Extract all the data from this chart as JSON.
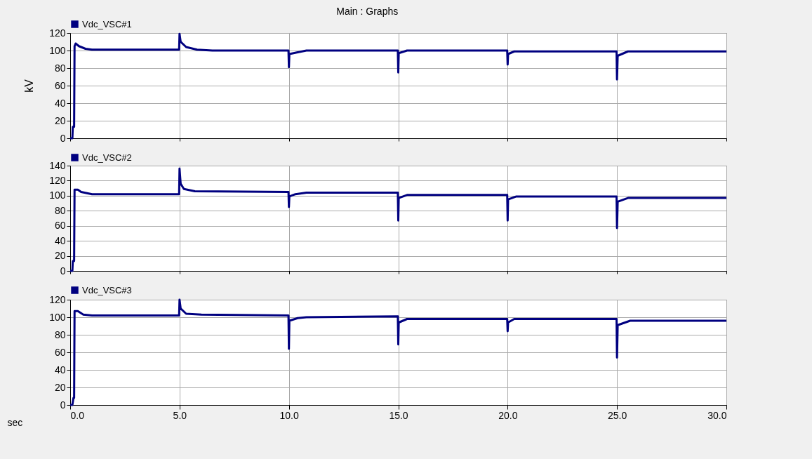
{
  "chart_data": [
    {
      "type": "line",
      "title": "Main : Graphs",
      "ylabel": "kV",
      "legend": "top left",
      "grid": true,
      "tick_labels": "y",
      "xlim": [
        0,
        30
      ],
      "xticks": [
        0,
        5,
        10,
        15,
        20,
        25,
        30
      ],
      "ylim": [
        0,
        120
      ],
      "yticks": [
        0,
        20,
        40,
        60,
        80,
        100,
        120
      ],
      "series": [
        {
          "name": "Vdc_VSC#1",
          "color": "#000080",
          "x": [
            0,
            0.1,
            0.12,
            0.18,
            0.2,
            0.25,
            0.4,
            0.7,
            1.0,
            4.98,
            5.0,
            5.05,
            5.3,
            5.8,
            6.5,
            9.98,
            10.0,
            10.02,
            10.4,
            10.8,
            14.98,
            15.0,
            15.02,
            15.4,
            19.98,
            20.0,
            20.02,
            20.3,
            24.98,
            25.0,
            25.03,
            25.5,
            30
          ],
          "values": [
            0,
            0,
            13,
            13,
            105,
            108,
            105,
            102,
            101,
            101,
            119,
            110,
            104,
            101,
            100,
            100,
            81,
            96,
            98,
            100,
            100,
            75,
            97,
            100,
            100,
            84,
            96,
            99,
            99,
            67,
            94,
            99,
            99
          ]
        }
      ]
    },
    {
      "type": "line",
      "legend": "top left",
      "grid": true,
      "tick_labels": "y",
      "xlim": [
        0,
        30
      ],
      "xticks": [
        0,
        5,
        10,
        15,
        20,
        25,
        30
      ],
      "ylim": [
        0,
        140
      ],
      "yticks": [
        0,
        20,
        40,
        60,
        80,
        100,
        120,
        140
      ],
      "series": [
        {
          "name": "Vdc_VSC#2",
          "color": "#000080",
          "x": [
            0,
            0.1,
            0.12,
            0.18,
            0.2,
            0.35,
            0.5,
            1.0,
            4.98,
            5.0,
            5.05,
            5.2,
            5.7,
            9.98,
            10.0,
            10.02,
            10.3,
            10.8,
            14.98,
            15.0,
            15.02,
            15.4,
            19.98,
            20.0,
            20.02,
            20.4,
            24.98,
            25.0,
            25.03,
            25.5,
            30
          ],
          "values": [
            0,
            0,
            13,
            13,
            108,
            108,
            105,
            102,
            102,
            136,
            116,
            109,
            106,
            105,
            85,
            99,
            102,
            104,
            104,
            67,
            97,
            101,
            101,
            67,
            95,
            99,
            99,
            57,
            92,
            97,
            97
          ]
        }
      ]
    },
    {
      "type": "line",
      "xlabel": "sec",
      "legend": "top left",
      "grid": true,
      "xlim": [
        0,
        30
      ],
      "xticks": [
        {
          "value": 0,
          "label": "0.0"
        },
        {
          "value": 5,
          "label": "5.0"
        },
        {
          "value": 10,
          "label": "10.0"
        },
        {
          "value": 15,
          "label": "15.0"
        },
        {
          "value": 20,
          "label": "20.0"
        },
        {
          "value": 25,
          "label": "25.0"
        },
        {
          "value": 30,
          "label": "30.0"
        }
      ],
      "ylim": [
        0,
        120
      ],
      "yticks": [
        0,
        20,
        40,
        60,
        80,
        100,
        120
      ],
      "series": [
        {
          "name": "Vdc_VSC#3",
          "color": "#000080",
          "x": [
            0,
            0.1,
            0.15,
            0.18,
            0.2,
            0.35,
            0.6,
            1.0,
            4.98,
            5.0,
            5.05,
            5.3,
            6.0,
            9.98,
            10.0,
            10.02,
            10.4,
            10.8,
            14.98,
            15.0,
            15.02,
            15.4,
            19.98,
            20.0,
            20.02,
            20.3,
            24.98,
            25.0,
            25.03,
            25.6,
            30
          ],
          "values": [
            0,
            0,
            8,
            8,
            107,
            107,
            103,
            102,
            102,
            120,
            110,
            104,
            103,
            102,
            64,
            96,
            99,
            100,
            101,
            69,
            94,
            98,
            98,
            84,
            94,
            98,
            98,
            54,
            91,
            96,
            96
          ]
        }
      ]
    }
  ]
}
